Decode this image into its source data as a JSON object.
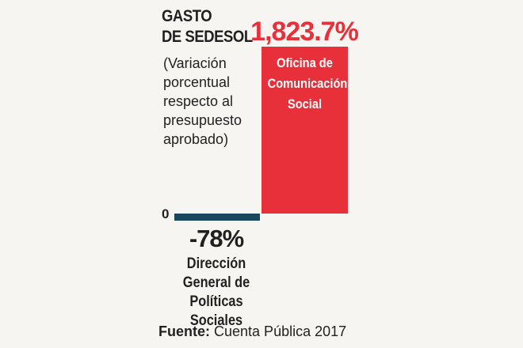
{
  "title_line1": "GASTO",
  "title_line2": "DE SEDESOL",
  "subtitle": "(Variación porcentual respecto al presupuesto aprobado)",
  "source": {
    "label": "Fuente:",
    "text": "Cuenta Pública 2017"
  },
  "colors": {
    "positive": "#e8303a",
    "negative": "#19475c",
    "text": "#231f20"
  },
  "chart_data": {
    "type": "bar",
    "categories": [
      "Dirección General de Políticas Sociales",
      "Oficina de Comunicación Social"
    ],
    "values": [
      -78,
      1823.7
    ],
    "value_labels": [
      "-78%",
      "1,823.7%"
    ],
    "zero_label": "0",
    "title": "GASTO DE SEDESOL",
    "ylabel": "",
    "xlabel": ""
  }
}
